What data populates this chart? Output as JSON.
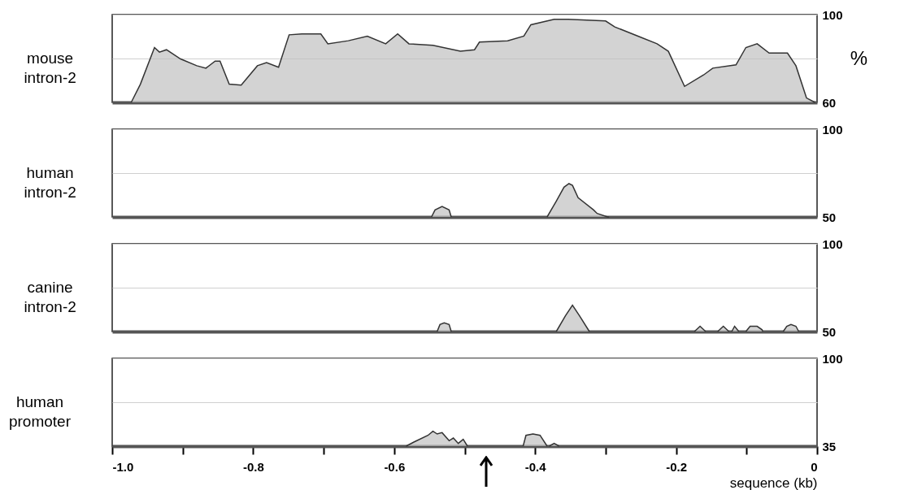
{
  "chart_data": [
    {
      "type": "area",
      "title": "mouse intron-2",
      "ylabel": "%",
      "color": "#c0c0c0",
      "xlim": [
        -1,
        0
      ],
      "ylim": [
        60,
        100
      ],
      "yticks": [
        60,
        {
          "value": 80,
          "label": null
        },
        100
      ],
      "grid": "y",
      "tick_labels": "y",
      "x": [
        -0.973,
        -0.96,
        -0.94,
        -0.933,
        -0.923,
        -0.903,
        -0.88,
        -0.867,
        -0.854,
        -0.847,
        -0.834,
        -0.817,
        -0.794,
        -0.781,
        -0.764,
        -0.749,
        -0.731,
        -0.704,
        -0.694,
        -0.665,
        -0.638,
        -0.612,
        -0.595,
        -0.579,
        -0.545,
        -0.506,
        -0.486,
        -0.479,
        -0.439,
        -0.416,
        -0.406,
        -0.373,
        -0.353,
        -0.3,
        -0.287,
        -0.254,
        -0.227,
        -0.211,
        -0.188,
        -0.161,
        -0.148,
        -0.115,
        -0.101,
        -0.085,
        -0.068,
        -0.042,
        -0.03,
        -0.015,
        -0.003
      ],
      "values": [
        60,
        68.3,
        85,
        82.9,
        84,
        79.8,
        76.7,
        75.6,
        78.8,
        78.8,
        68.3,
        67.9,
        76.7,
        78.1,
        76,
        90.8,
        91.2,
        91.2,
        86.7,
        88.1,
        90.2,
        86.7,
        91.2,
        86.7,
        86,
        83.3,
        84,
        87.5,
        88.1,
        90.2,
        95.4,
        97.9,
        97.9,
        97.1,
        94.4,
        90.2,
        86.7,
        83.3,
        67.3,
        72.5,
        75.6,
        77.1,
        85,
        86.7,
        82.5,
        82.5,
        76.7,
        62,
        60
      ]
    },
    {
      "type": "area",
      "title": "human intron-2",
      "color": "#c0c0c0",
      "xlim": [
        -1,
        0
      ],
      "ylim": [
        50,
        100
      ],
      "yticks": [
        50,
        {
          "value": 75,
          "label": null
        },
        100
      ],
      "grid": "y",
      "tick_labels": "y",
      "x": [
        -0.547,
        -0.542,
        -0.532,
        -0.522,
        -0.519,
        -0.45,
        -0.383,
        -0.37,
        -0.359,
        -0.352,
        -0.347,
        -0.339,
        -0.317,
        -0.312,
        -0.297,
        -0.295
      ],
      "values": [
        50,
        54,
        56,
        54,
        50,
        null,
        50,
        59,
        67,
        69,
        68,
        61,
        54,
        52,
        50,
        50
      ]
    },
    {
      "type": "area",
      "title": "canine intron-2",
      "color": "#c0c0c0",
      "xlim": [
        -1,
        0
      ],
      "ylim": [
        50,
        100
      ],
      "yticks": [
        50,
        {
          "value": 75,
          "label": null
        },
        100
      ],
      "grid": "y",
      "tick_labels": "y",
      "x": [
        -0.539,
        -0.535,
        -0.529,
        -0.522,
        -0.519,
        -0.45,
        -0.37,
        -0.357,
        -0.347,
        -0.337,
        -0.323,
        -0.25,
        -0.174,
        -0.166,
        -0.158,
        -0.15,
        -0.141,
        -0.133,
        -0.125,
        -0.123,
        -0.121,
        -0.117,
        -0.111,
        -0.106,
        -0.101,
        -0.095,
        -0.085,
        -0.078,
        -0.077,
        -0.06,
        -0.048,
        -0.043,
        -0.037,
        -0.03,
        -0.026
      ],
      "values": [
        50,
        54,
        55,
        54,
        50,
        null,
        50,
        59,
        65,
        59,
        50,
        null,
        50,
        53,
        50,
        null,
        50,
        53,
        50,
        null,
        50,
        53,
        50,
        null,
        50,
        53,
        53,
        51,
        50,
        null,
        50,
        53,
        54,
        53,
        50
      ]
    },
    {
      "type": "area",
      "title": "human promoter",
      "xlabel": "sequence (kb)",
      "color": "#c0c0c0",
      "xlim": [
        -1,
        0
      ],
      "xticks": [
        {
          "value": -1,
          "label": "-1.0"
        },
        {
          "value": -0.9,
          "label": null
        },
        -0.8,
        {
          "value": -0.7,
          "label": null
        },
        -0.6,
        {
          "value": -0.5,
          "label": null
        },
        -0.4,
        {
          "value": -0.3,
          "label": null
        },
        -0.2,
        {
          "value": -0.1,
          "label": null
        },
        0
      ],
      "ylim": [
        35,
        100
      ],
      "yticks": [
        35,
        {
          "value": 67.5,
          "label": null
        },
        100
      ],
      "grid": "y",
      "x": [
        -0.583,
        -0.572,
        -0.552,
        -0.545,
        -0.539,
        -0.532,
        -0.522,
        -0.516,
        -0.509,
        -0.502,
        -0.496,
        -0.45,
        -0.417,
        -0.413,
        -0.403,
        -0.393,
        -0.383,
        -0.381,
        -0.38,
        -0.373,
        -0.366
      ],
      "values": [
        35,
        38,
        43,
        46,
        44,
        45,
        39,
        41,
        37,
        40,
        35,
        null,
        35,
        43,
        44,
        43,
        35,
        null,
        35,
        37,
        35
      ]
    }
  ]
}
